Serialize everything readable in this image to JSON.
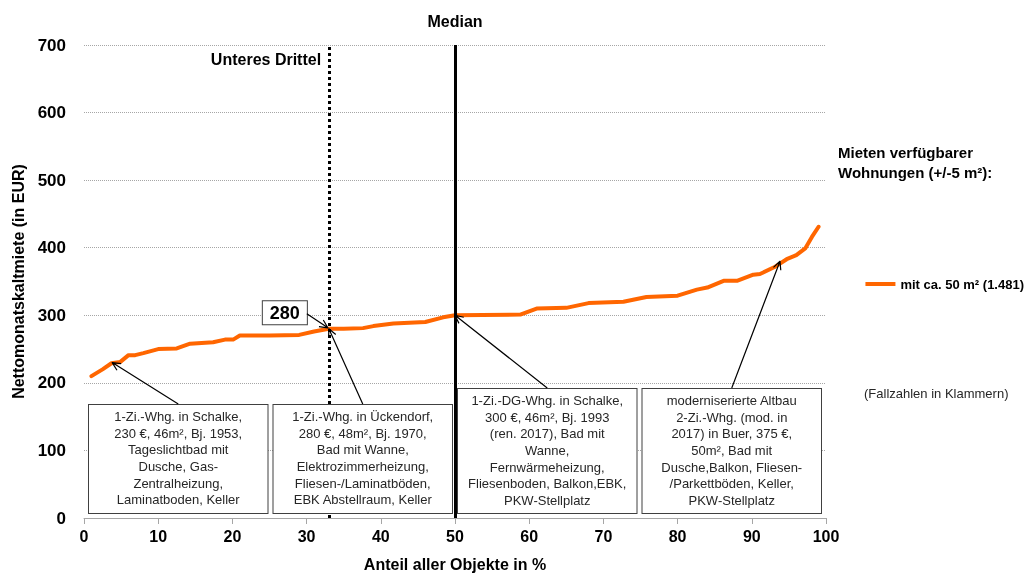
{
  "chart_data": {
    "type": "line",
    "xlabel": "Anteil aller Objekte in %",
    "ylabel": "Nettomonatskaltmiete (in EUR)",
    "legend_title": "Mieten verfügbarer Wohnungen (+/-5 m²):",
    "x": [
      1,
      2.5,
      3.7,
      4.9,
      6,
      6.9,
      8,
      10,
      12.5,
      14.3,
      17.4,
      19,
      20.1,
      21,
      25,
      29,
      31,
      33,
      35,
      37.6,
      39,
      41.7,
      46,
      48.4,
      50,
      58.8,
      61,
      65,
      68,
      72.7,
      75.8,
      80,
      82.6,
      84,
      86.2,
      88,
      90.2,
      91.1,
      93,
      94.7,
      96,
      97.2,
      98.1,
      99
    ],
    "series": [
      {
        "name": "mit ca. 50 m² (1.481)",
        "color": "#ff6600",
        "values": [
          210,
          220,
          229,
          231,
          241,
          241,
          244,
          250,
          251,
          258,
          260,
          264,
          264,
          270,
          270,
          271,
          276,
          280,
          280,
          281,
          284,
          288,
          290,
          297,
          300,
          301,
          310,
          311,
          318,
          320,
          327,
          329,
          338,
          341,
          351,
          351,
          360,
          361,
          371,
          383,
          389,
          399,
          416,
          431
        ],
        "value_labels": [
          null,
          null,
          null,
          null,
          null,
          null,
          null,
          null,
          null,
          null,
          null,
          null,
          null,
          null,
          null,
          null,
          null,
          "280",
          null,
          null,
          null,
          null,
          null,
          null,
          null,
          null,
          null,
          null,
          null,
          null,
          null,
          null,
          null,
          null,
          null,
          null,
          null,
          null,
          null,
          null,
          null,
          null,
          null,
          null
        ]
      }
    ],
    "xlim": [
      0,
      100
    ],
    "xticks": [
      0,
      10,
      20,
      30,
      40,
      50,
      60,
      70,
      80,
      90,
      100
    ],
    "ylim": [
      0,
      700
    ],
    "yticks": [
      0,
      100,
      200,
      300,
      400,
      500,
      600,
      700
    ],
    "ref_lines": [
      {
        "axis": "x",
        "value": 33,
        "label": "Unteres Drittel",
        "color": "#000000",
        "line_style": "dotted"
      },
      {
        "axis": "x",
        "value": 50,
        "label": "Median",
        "color": "#000000",
        "line_style": "solid"
      }
    ],
    "annotations": [
      {
        "text": "1-Zi.-Whg. in Schalke,\n230 €, 46m², Bj. 1953,\nTageslichtbad mit\nDusche, Gas-\nZentralheizung,\nLaminatboden, Keller",
        "x": 3.8,
        "y": 230
      },
      {
        "text": "1-Zi.-Whg. in Ückendorf,\n280 €, 48m², Bj. 1970,\nBad mit Wanne,\nElektrozimmerheizung,\nFliesen-/Laminatböden,\nEBK Abstellraum, Keller",
        "x": 33,
        "y": 280
      },
      {
        "text": "1-Zi.-DG-Whg. in Schalke,\n300 €, 46m², Bj. 1993\n(ren. 2017), Bad mit\nWanne,\nFernwärmeheizung,\nFliesenboden, Balkon,EBK,\nPKW-Stellplatz",
        "x": 50,
        "y": 300
      },
      {
        "text": "moderniserierte Altbau\n2-Zi.-Whg. (mod. in\n2017) in Buer, 375 €,\n50m², Bad mit\nDusche,Balkon, Fliesen-\n/Parkettböden, Keller,\nPKW-Stellplatz",
        "x": 93.8,
        "y": 380
      },
      "(Fallzahlen in Klammern)"
    ],
    "grid": "y",
    "legend": "right",
    "marker": "none",
    "line_style": "solid"
  }
}
